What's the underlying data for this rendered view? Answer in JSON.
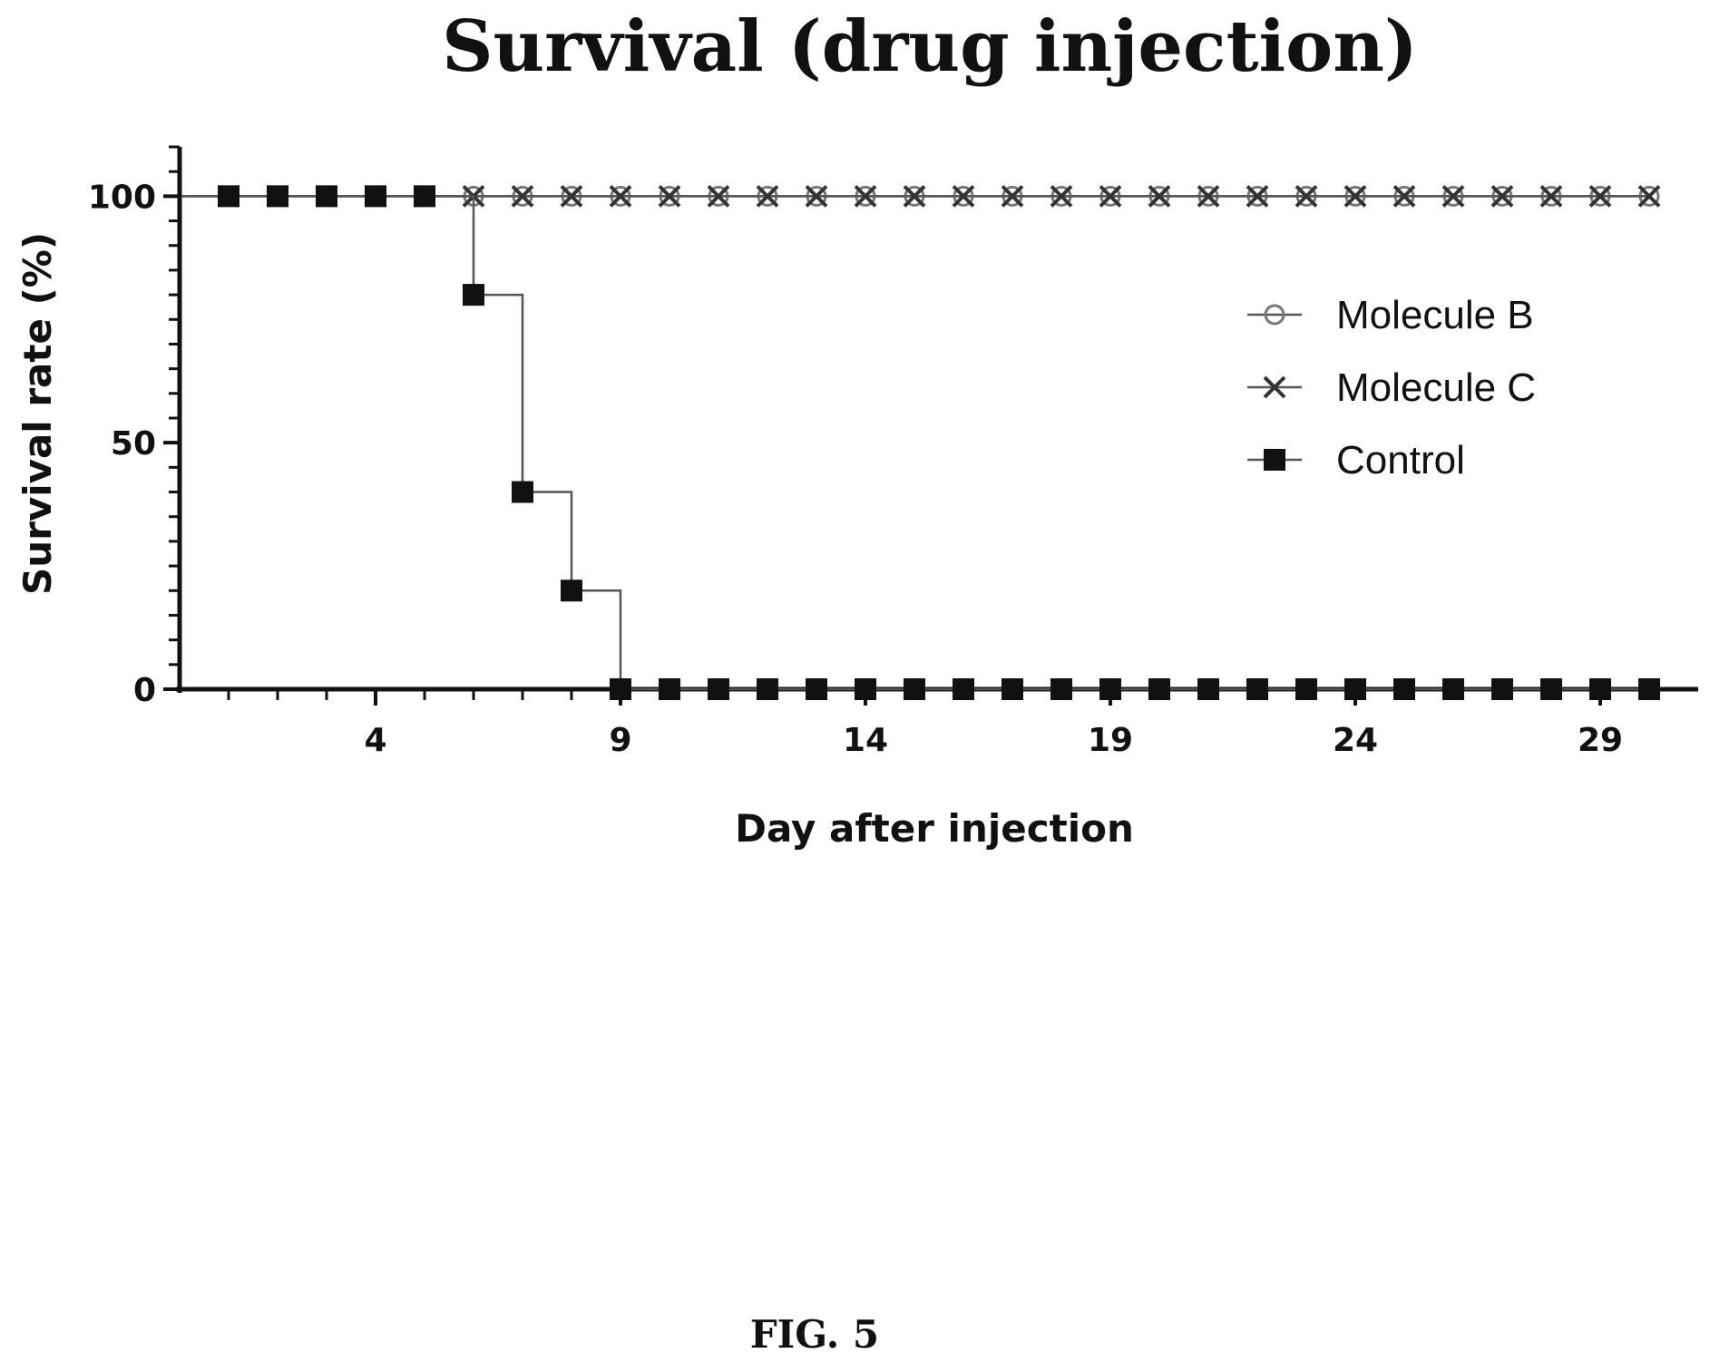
{
  "chart_data": {
    "type": "line",
    "title": "Survival (drug injection)",
    "xlabel": "Day after injection",
    "ylabel": "Survival rate (%)",
    "xlim": [
      0,
      31
    ],
    "ylim": [
      0,
      110
    ],
    "x_ticks": [
      4,
      9,
      14,
      19,
      24,
      29
    ],
    "y_ticks": [
      0,
      50,
      100
    ],
    "legend_position": "right",
    "series": [
      {
        "name": "Molecule B",
        "marker": "circle",
        "color": "#777777",
        "x": [
          1,
          2,
          3,
          4,
          5,
          6,
          7,
          8,
          9,
          10,
          11,
          12,
          13,
          14,
          15,
          16,
          17,
          18,
          19,
          20,
          21,
          22,
          23,
          24,
          25,
          26,
          27,
          28,
          29,
          30
        ],
        "values": [
          100,
          100,
          100,
          100,
          100,
          100,
          100,
          100,
          100,
          100,
          100,
          100,
          100,
          100,
          100,
          100,
          100,
          100,
          100,
          100,
          100,
          100,
          100,
          100,
          100,
          100,
          100,
          100,
          100,
          100
        ]
      },
      {
        "name": "Molecule C",
        "marker": "x",
        "color": "#333333",
        "x": [
          1,
          2,
          3,
          4,
          5,
          6,
          7,
          8,
          9,
          10,
          11,
          12,
          13,
          14,
          15,
          16,
          17,
          18,
          19,
          20,
          21,
          22,
          23,
          24,
          25,
          26,
          27,
          28,
          29,
          30
        ],
        "values": [
          100,
          100,
          100,
          100,
          100,
          100,
          100,
          100,
          100,
          100,
          100,
          100,
          100,
          100,
          100,
          100,
          100,
          100,
          100,
          100,
          100,
          100,
          100,
          100,
          100,
          100,
          100,
          100,
          100,
          100
        ]
      },
      {
        "name": "Control",
        "marker": "square",
        "color": "#111111",
        "x": [
          1,
          2,
          3,
          4,
          5,
          6,
          7,
          8,
          9,
          10,
          11,
          12,
          13,
          14,
          15,
          16,
          17,
          18,
          19,
          20,
          21,
          22,
          23,
          24,
          25,
          26,
          27,
          28,
          29,
          30
        ],
        "values": [
          100,
          100,
          100,
          100,
          100,
          80,
          40,
          20,
          0,
          0,
          0,
          0,
          0,
          0,
          0,
          0,
          0,
          0,
          0,
          0,
          0,
          0,
          0,
          0,
          0,
          0,
          0,
          0,
          0,
          0
        ]
      }
    ]
  },
  "caption": "FIG. 5"
}
